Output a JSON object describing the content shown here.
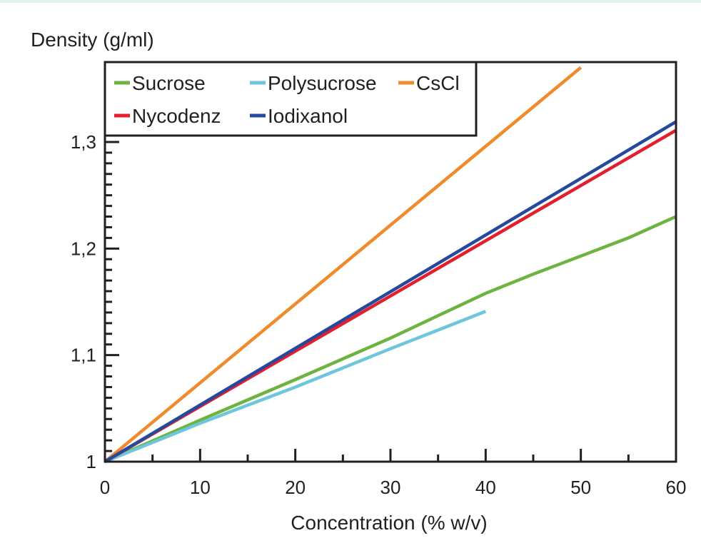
{
  "chart_data": {
    "type": "line",
    "ylabel": "Density (g/ml)",
    "xlabel": "Concentration (% w/v)",
    "xlim": [
      0,
      60
    ],
    "ylim": [
      1.0,
      1.375
    ],
    "x_ticks": [
      "0",
      "10",
      "20",
      "30",
      "40",
      "50",
      "60"
    ],
    "y_ticks": [
      {
        "value": 1.0,
        "label": "1"
      },
      {
        "value": 1.1,
        "label": "1,1"
      },
      {
        "value": 1.2,
        "label": "1,2"
      },
      {
        "value": 1.3,
        "label": "1,3"
      }
    ],
    "grid": false,
    "legend_position": "top-left",
    "series": [
      {
        "name": "Sucrose",
        "color": "#6cb33f",
        "points": [
          [
            0,
            1.0
          ],
          [
            10,
            1.039
          ],
          [
            20,
            1.077
          ],
          [
            30,
            1.116
          ],
          [
            35,
            1.137
          ],
          [
            40,
            1.158
          ],
          [
            45,
            1.176
          ],
          [
            50,
            1.193
          ],
          [
            55,
            1.21
          ],
          [
            60,
            1.23
          ]
        ]
      },
      {
        "name": "Polysucrose",
        "color": "#6ec6dc",
        "points": [
          [
            0,
            1.0
          ],
          [
            10,
            1.036
          ],
          [
            20,
            1.07
          ],
          [
            30,
            1.106
          ],
          [
            40,
            1.141
          ]
        ]
      },
      {
        "name": "CsCl",
        "color": "#f08a2b",
        "points": [
          [
            0,
            1.0
          ],
          [
            50,
            1.37
          ]
        ]
      },
      {
        "name": "Nycodenz",
        "color": "#e31e2d",
        "points": [
          [
            0,
            1.0
          ],
          [
            60,
            1.311
          ]
        ]
      },
      {
        "name": "Iodixanol",
        "color": "#25499c",
        "points": [
          [
            0,
            1.0
          ],
          [
            60,
            1.319
          ]
        ]
      }
    ]
  }
}
